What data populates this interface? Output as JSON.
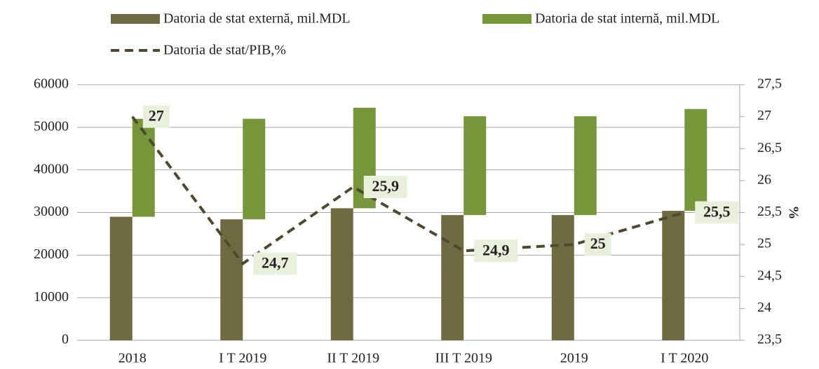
{
  "chart_data": {
    "type": "bar_line",
    "categories": [
      "2018",
      "I T 2019",
      "II T 2019",
      "III T 2019",
      "2019",
      "I T 2020"
    ],
    "series": [
      {
        "name": "Datoria de stat externă, mil.MDL",
        "color": "#6e6a42",
        "type": "bar",
        "values": [
          29000,
          28400,
          31000,
          29400,
          29400,
          30400
        ]
      },
      {
        "name": "Datoria de stat internă, mil.MDL",
        "color": "#77963a",
        "type": "bar",
        "values": [
          23000,
          23600,
          23600,
          23200,
          23200,
          23900
        ]
      },
      {
        "name": "Datoria de stat/PIB,%",
        "color": "#4f4a2e",
        "type": "line",
        "axis": "y2",
        "values": [
          27,
          24.7,
          25.9,
          24.9,
          25,
          25.5
        ],
        "value_labels": [
          "27",
          "24,7",
          "25,9",
          "24,9",
          "25",
          "25,5"
        ]
      }
    ],
    "stacked": true,
    "ylim": [
      0,
      60000
    ],
    "yticks": [
      0,
      10000,
      20000,
      30000,
      40000,
      50000,
      60000
    ],
    "y2lim": [
      23.5,
      27.5
    ],
    "y2ticks": [
      {
        "value": 23.5,
        "label": "23,5"
      },
      24,
      {
        "value": 24.5,
        "label": "24,5"
      },
      25,
      {
        "value": 25.5,
        "label": "25,5"
      },
      26,
      {
        "value": 26.5,
        "label": "26,5"
      },
      27,
      {
        "value": 27.5,
        "label": "27,5"
      }
    ],
    "y2label": "%",
    "grid": true,
    "legend": "top"
  }
}
